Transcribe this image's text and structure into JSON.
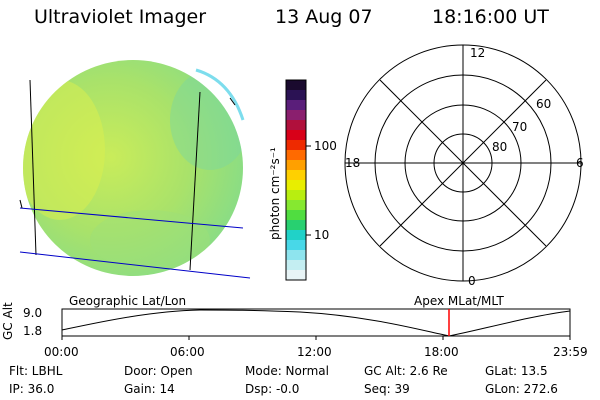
{
  "header": {
    "instrument": "Ultraviolet Imager",
    "date": "13 Aug 07",
    "time": "18:16:00 UT"
  },
  "colorbar": {
    "unit": "photon cm⁻²s⁻¹",
    "ticks": [
      "100",
      "10"
    ],
    "colors": [
      "#1a0a2e",
      "#2b1254",
      "#5a1e7a",
      "#8a1f6e",
      "#b0103c",
      "#d80018",
      "#ee2a00",
      "#ff6a00",
      "#ffa000",
      "#ffd000",
      "#e8ee00",
      "#b8ee10",
      "#86e830",
      "#50dd40",
      "#28d070",
      "#20d2c8",
      "#48d8e8",
      "#8ee4ee",
      "#c4eef2",
      "#e8f4f6"
    ]
  },
  "left_panel": {
    "label": "Geographic Lat/Lon",
    "disk_color": "#a6e070"
  },
  "polar_grid": {
    "label": "Apex MLat/MLT",
    "mlt_labels": {
      "top": "12",
      "left": "18",
      "right": "6",
      "bottom": "0"
    },
    "lat_labels": [
      "60",
      "70",
      "80"
    ]
  },
  "timeline": {
    "ylabel": "GC Alt",
    "yticks": [
      "9.0",
      "1.8"
    ],
    "xticks": [
      "00:00",
      "06:00",
      "12:00",
      "18:00",
      "23:59"
    ],
    "cursor_color": "#ff0000"
  },
  "footer": {
    "flt": "Flt: LBHL",
    "ip": "IP: 36.0",
    "door": "Door: Open",
    "gain": "Gain: 14",
    "mode": "Mode: Normal",
    "dsp": "Dsp:  -0.0",
    "gcalt": "GC Alt: 2.6 Re",
    "seq": "Seq: 39",
    "glat": "GLat:  13.5",
    "glon": "GLon: 272.6"
  }
}
